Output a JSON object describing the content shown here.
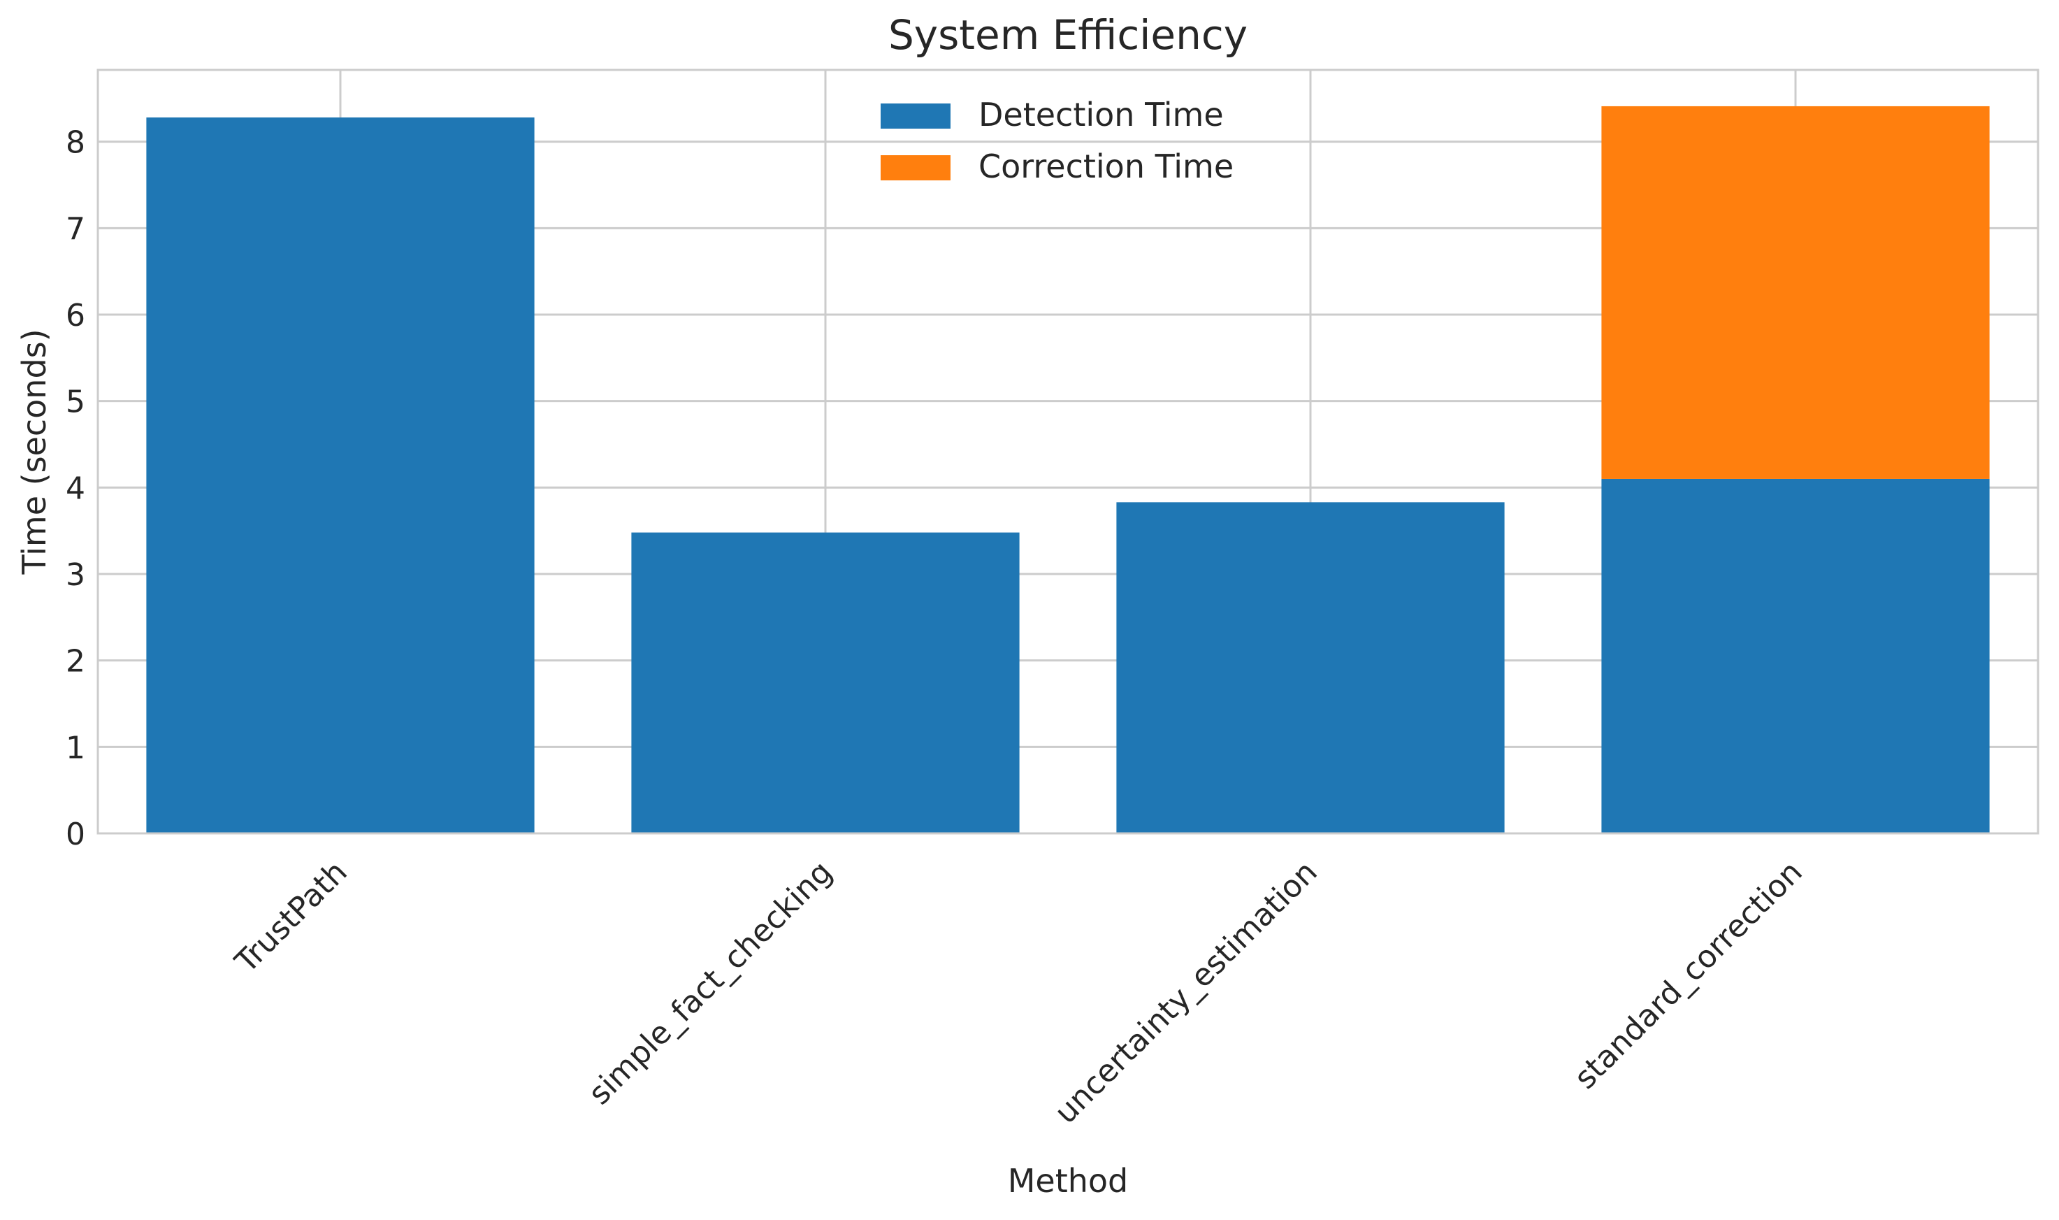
{
  "chart_data": {
    "type": "bar",
    "stacked": true,
    "title": "System Efficiency",
    "xlabel": "Method",
    "ylabel": "Time (seconds)",
    "categories": [
      "TrustPath",
      "simple_fact_checking",
      "uncertainty_estimation",
      "standard_correction"
    ],
    "series": [
      {
        "name": "Detection Time",
        "color": "#1f77b4",
        "values": [
          8.28,
          3.48,
          3.83,
          4.1
        ]
      },
      {
        "name": "Correction Time",
        "color": "#ff7f0e",
        "values": [
          0,
          0,
          0,
          4.31
        ]
      }
    ],
    "ylim": [
      0,
      8.83
    ],
    "yticks": [
      0,
      1,
      2,
      3,
      4,
      5,
      6,
      7,
      8
    ],
    "grid": true,
    "legend_position": "top-center"
  }
}
